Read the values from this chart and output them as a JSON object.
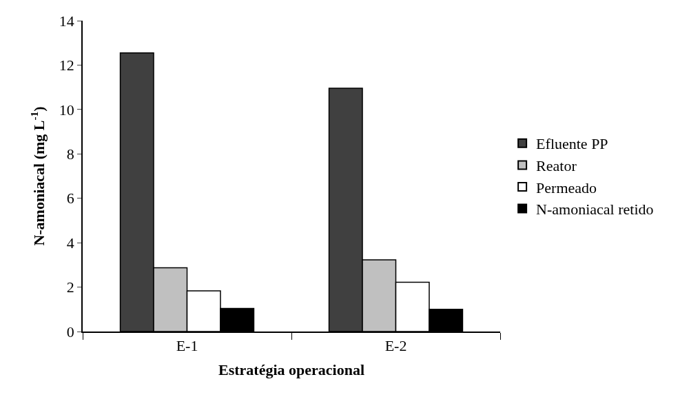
{
  "chart_data": {
    "type": "bar",
    "xlabel": "Estratégia operacional",
    "ylabel": "N-amoniacal (mg L$^{-1}$)",
    "categories": [
      "E-1",
      "E-2"
    ],
    "series": [
      {
        "name": "Efluente PP",
        "color": "#404040",
        "values": [
          12.55,
          10.96
        ]
      },
      {
        "name": "Reator",
        "color": "#c0c0c0",
        "values": [
          2.87,
          3.23
        ]
      },
      {
        "name": "Permeado",
        "color": "#ffffff",
        "values": [
          1.83,
          2.22
        ]
      },
      {
        "name": "N-amoniacal retido",
        "color": "#000000",
        "values": [
          1.04,
          1.0
        ]
      }
    ],
    "ylim": [
      0,
      14
    ],
    "yticks": [
      0,
      2,
      4,
      6,
      8,
      10,
      12,
      14
    ],
    "legend": "right"
  }
}
